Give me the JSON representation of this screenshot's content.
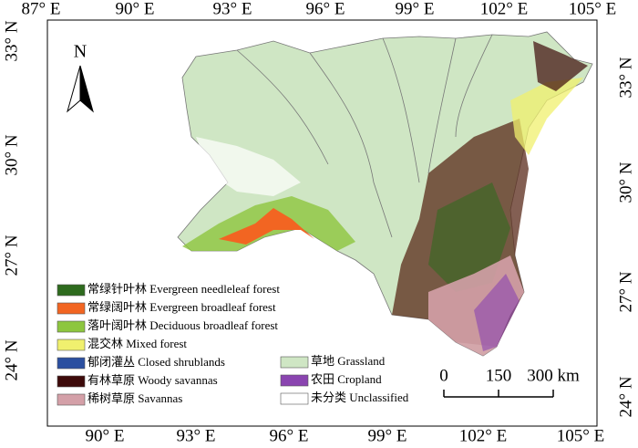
{
  "axes": {
    "top": [
      "87° E",
      "90° E",
      "93° E",
      "96° E",
      "99° E",
      "102° E",
      "105° E"
    ],
    "bottom": [
      "90° E",
      "93° E",
      "96° E",
      "99° E",
      "102° E",
      "105° E"
    ],
    "left": [
      "33° N",
      "30° N",
      "27° N",
      "24° N"
    ],
    "right": [
      "33° N",
      "30° N",
      "27° N",
      "24° N"
    ]
  },
  "north": "N",
  "scale_bar": {
    "labels": [
      "0",
      "150",
      "300 km"
    ]
  },
  "legend": {
    "items": [
      {
        "label": "常绿针叶林 Evergreen needleleaf forest",
        "color": "#2e6b1e"
      },
      {
        "label": "常绿阔叶林 Evergreen broadleaf forest",
        "color": "#f26522"
      },
      {
        "label": "落叶阔叶林 Deciduous broadleaf forest",
        "color": "#8dc63f"
      },
      {
        "label": "混交林 Mixed forest",
        "color": "#f0f06e"
      },
      {
        "label": "郁闭灌丛 Closed shrublands",
        "color": "#2b4fa0"
      },
      {
        "label": "有林草原 Woody savannas",
        "color": "#3d0a0a"
      },
      {
        "label": "稀树草原 Savannas",
        "color": "#d4a0a8"
      },
      {
        "label": "草地 Grassland",
        "color": "#cfe6c4"
      },
      {
        "label": "农田 Cropland",
        "color": "#8a44b0"
      },
      {
        "label": "未分类 Unclassified",
        "color": "#ffffff"
      }
    ]
  }
}
